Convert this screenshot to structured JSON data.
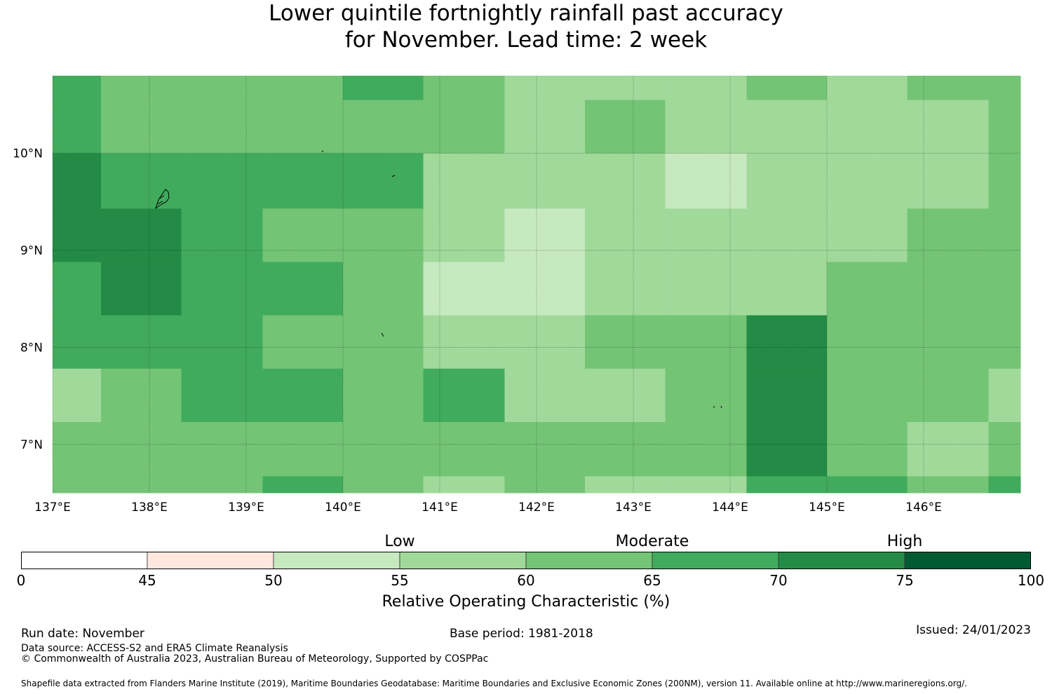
{
  "title_line1": "Lower quintile fortnightly rainfall past accuracy",
  "title_line2": "for November. Lead time: 2 week",
  "map": {
    "lon_min": 137.0,
    "lon_max": 147.0,
    "lat_min": 6.5,
    "lat_max": 10.8,
    "lon_ticks": [
      137,
      138,
      139,
      140,
      141,
      142,
      143,
      144,
      145,
      146
    ],
    "lon_tick_labels": [
      "137°E",
      "138°E",
      "139°E",
      "140°E",
      "141°E",
      "142°E",
      "143°E",
      "144°E",
      "145°E",
      "146°E"
    ],
    "lat_ticks": [
      10,
      9,
      8,
      7
    ],
    "lat_tick_labels": [
      "10°N",
      "9°N",
      "8°N",
      "7°N"
    ],
    "grid_lines": true,
    "col_edges_lon": [
      137.0,
      137.5,
      138.33,
      139.17,
      140.0,
      140.83,
      141.67,
      142.5,
      143.33,
      144.17,
      145.0,
      145.83,
      146.67,
      147.0
    ],
    "row_edges_lat": [
      10.8,
      10.55,
      10.0,
      9.43,
      8.88,
      8.33,
      7.78,
      7.23,
      6.67,
      6.5
    ],
    "roc_grid": [
      [
        67,
        62,
        62,
        62,
        67,
        62,
        57,
        57,
        57,
        62,
        57,
        62,
        62
      ],
      [
        67,
        62,
        62,
        62,
        62,
        62,
        57,
        62,
        57,
        57,
        57,
        57,
        62
      ],
      [
        72,
        67,
        67,
        67,
        67,
        57,
        57,
        57,
        52,
        57,
        57,
        57,
        62
      ],
      [
        72,
        72,
        67,
        62,
        62,
        57,
        52,
        57,
        57,
        57,
        57,
        62,
        62
      ],
      [
        67,
        72,
        67,
        67,
        62,
        52,
        52,
        57,
        57,
        57,
        62,
        62,
        62
      ],
      [
        67,
        67,
        67,
        62,
        62,
        57,
        57,
        62,
        62,
        72,
        62,
        62,
        62
      ],
      [
        57,
        62,
        67,
        67,
        62,
        67,
        57,
        57,
        62,
        72,
        62,
        62,
        57
      ],
      [
        62,
        62,
        62,
        62,
        62,
        62,
        62,
        62,
        62,
        72,
        62,
        57,
        62
      ],
      [
        62,
        62,
        62,
        67,
        62,
        57,
        62,
        57,
        57,
        67,
        67,
        62,
        67
      ]
    ]
  },
  "legend": {
    "bins": [
      0,
      45,
      50,
      55,
      60,
      65,
      70,
      75,
      100
    ],
    "colors": [
      "#ffffff",
      "#fee8de",
      "#c7e9c0",
      "#a1d99b",
      "#74c476",
      "#41ab5d",
      "#238b45",
      "#005a32"
    ],
    "tick_labels": [
      "0",
      "45",
      "50",
      "55",
      "60",
      "65",
      "70",
      "75",
      "100"
    ],
    "category_low": "Low",
    "category_moderate": "Moderate",
    "category_high": "High",
    "title": "Relative Operating Characteristic (%)"
  },
  "footer": {
    "run_date": "Run date: November",
    "base_period": "Base period: 1981-2018",
    "issued": "Issued: 24/01/2023",
    "data_source": "Data source: ACCESS-S2 and ERA5 Climate Reanalysis",
    "copyright": "© Commonwealth of Australia 2023, Australian Bureau of Meteorology, Supported by COSPPac",
    "shapefile": "Shapefile data extracted from Flanders Marine Institute (2019), Maritime Boundaries Geodatabase: Maritime Boundaries and Exclusive Economic Zones (200NM), version 11. Available online at http://www.marineregions.org/."
  }
}
